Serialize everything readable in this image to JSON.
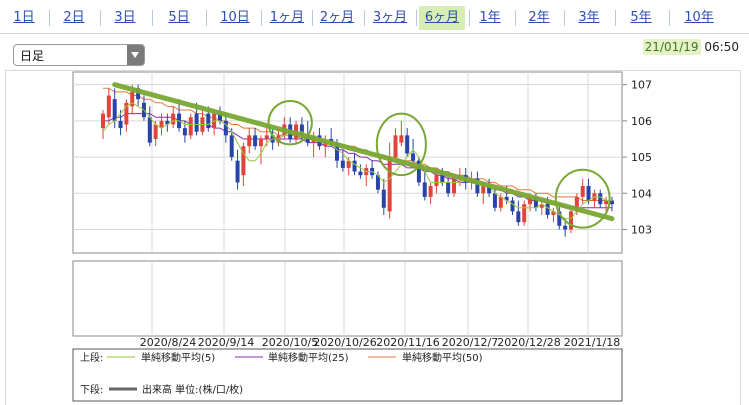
{
  "tabs": [
    {
      "label": "1日"
    },
    {
      "label": "2日"
    },
    {
      "label": "3日"
    },
    {
      "label": "5日"
    },
    {
      "label": "10日"
    },
    {
      "label": "1ヶ月"
    },
    {
      "label": "2ヶ月"
    },
    {
      "label": "3ヶ月"
    },
    {
      "label": "6ヶ月",
      "active": true
    },
    {
      "label": "1年"
    },
    {
      "label": "2年"
    },
    {
      "label": "3年"
    },
    {
      "label": "5年"
    },
    {
      "label": "10年"
    }
  ],
  "period_select": {
    "value": "日足"
  },
  "timestamp": {
    "date": "21/01/19",
    "time": "06:50"
  },
  "colors": {
    "up": "#e0443a",
    "down": "#2844a8",
    "ma5": "#9acb3c",
    "ma25": "#8a2bb8",
    "ma50": "#e07a3a",
    "trend": "#79a832",
    "tab_active": "#d6eeb2",
    "link": "#2a4fb0"
  },
  "legend": {
    "upper_label": "上段:",
    "lower_label": "下段:",
    "ma5": "単純移動平均(5)",
    "ma25": "単純移動平均(25)",
    "ma50": "単純移動平均(50)",
    "volume": "出来高 単位:(株/口/枚)"
  },
  "chart_data": {
    "type": "candlestick",
    "y_ticks": [
      103,
      104,
      105,
      106,
      107
    ],
    "ylim": [
      102.35,
      107.35
    ],
    "x_tick_labels": [
      "2020/8/24",
      "2020/9/14",
      "2020/10/5",
      "2020/10/26",
      "2020/11/16",
      "2020/12/7",
      "2020/12/28",
      "2021/1/18"
    ],
    "candles_ohlc": [
      [
        105.8,
        106.3,
        105.5,
        106.2
      ],
      [
        106.1,
        106.9,
        105.9,
        106.7
      ],
      [
        106.6,
        106.9,
        105.8,
        106.0
      ],
      [
        106.0,
        106.3,
        105.6,
        105.8
      ],
      [
        105.9,
        106.6,
        105.7,
        106.5
      ],
      [
        106.4,
        107.0,
        106.2,
        106.8
      ],
      [
        106.9,
        107.0,
        106.4,
        106.6
      ],
      [
        106.5,
        106.7,
        106.0,
        106.1
      ],
      [
        106.1,
        106.4,
        105.3,
        105.4
      ],
      [
        105.5,
        106.0,
        105.3,
        105.9
      ],
      [
        105.8,
        106.2,
        105.6,
        106.0
      ],
      [
        106.0,
        106.2,
        105.7,
        105.9
      ],
      [
        105.9,
        106.4,
        105.8,
        106.2
      ],
      [
        106.2,
        106.6,
        105.7,
        105.8
      ],
      [
        105.8,
        106.0,
        105.4,
        105.6
      ],
      [
        105.6,
        106.2,
        105.5,
        106.1
      ],
      [
        106.2,
        106.5,
        105.6,
        105.7
      ],
      [
        105.7,
        106.3,
        105.6,
        106.1
      ],
      [
        106.2,
        106.4,
        105.7,
        105.8
      ],
      [
        105.8,
        106.3,
        105.6,
        106.2
      ],
      [
        106.2,
        106.4,
        105.9,
        106.0
      ],
      [
        106.0,
        106.2,
        105.4,
        105.6
      ],
      [
        105.6,
        105.8,
        104.9,
        105.0
      ],
      [
        104.9,
        105.2,
        104.1,
        104.3
      ],
      [
        104.5,
        105.4,
        104.2,
        105.3
      ],
      [
        105.3,
        105.8,
        105.1,
        105.6
      ],
      [
        105.6,
        105.8,
        105.2,
        105.3
      ],
      [
        105.3,
        105.6,
        104.8,
        105.5
      ],
      [
        105.5,
        105.8,
        105.3,
        105.6
      ],
      [
        105.6,
        105.8,
        105.2,
        105.4
      ],
      [
        105.4,
        105.8,
        105.3,
        105.6
      ],
      [
        105.6,
        106.1,
        105.5,
        105.9
      ],
      [
        105.9,
        106.1,
        105.4,
        105.5
      ],
      [
        105.5,
        106.0,
        105.4,
        105.9
      ],
      [
        105.9,
        106.1,
        105.5,
        105.6
      ],
      [
        105.6,
        106.0,
        105.3,
        105.4
      ],
      [
        105.4,
        105.7,
        105.0,
        105.6
      ],
      [
        105.6,
        105.8,
        105.2,
        105.3
      ],
      [
        105.3,
        105.6,
        105.0,
        105.4
      ],
      [
        105.5,
        105.8,
        105.3,
        105.4
      ],
      [
        105.4,
        105.5,
        104.7,
        104.9
      ],
      [
        104.9,
        105.2,
        104.6,
        104.7
      ],
      [
        104.7,
        105.0,
        104.5,
        104.9
      ],
      [
        104.9,
        105.1,
        104.5,
        104.6
      ],
      [
        104.6,
        104.8,
        104.4,
        104.5
      ],
      [
        104.5,
        104.8,
        104.2,
        104.7
      ],
      [
        104.7,
        104.9,
        104.4,
        104.5
      ],
      [
        104.5,
        104.6,
        104.0,
        104.1
      ],
      [
        104.1,
        104.4,
        103.4,
        103.6
      ],
      [
        103.5,
        105.4,
        103.3,
        105.0
      ],
      [
        105.0,
        105.8,
        104.9,
        105.6
      ],
      [
        105.4,
        106.0,
        105.3,
        105.6
      ],
      [
        105.6,
        105.8,
        105.0,
        105.1
      ],
      [
        105.1,
        105.5,
        104.8,
        104.9
      ],
      [
        104.9,
        105.0,
        104.2,
        104.3
      ],
      [
        104.3,
        104.6,
        103.8,
        103.9
      ],
      [
        103.9,
        104.3,
        103.7,
        104.2
      ],
      [
        104.2,
        104.7,
        104.0,
        104.5
      ],
      [
        104.5,
        104.7,
        104.2,
        104.3
      ],
      [
        104.3,
        104.6,
        103.9,
        104.0
      ],
      [
        104.0,
        104.5,
        103.9,
        104.4
      ],
      [
        104.4,
        104.7,
        104.2,
        104.5
      ],
      [
        104.5,
        104.7,
        104.1,
        104.3
      ],
      [
        104.3,
        104.6,
        104.1,
        104.4
      ],
      [
        104.4,
        104.6,
        103.9,
        104.0
      ],
      [
        104.0,
        104.3,
        103.7,
        104.2
      ],
      [
        104.2,
        104.4,
        103.9,
        104.0
      ],
      [
        104.0,
        104.1,
        103.5,
        103.6
      ],
      [
        103.6,
        104.0,
        103.5,
        103.9
      ],
      [
        103.9,
        104.2,
        103.7,
        103.8
      ],
      [
        103.8,
        103.9,
        103.4,
        103.5
      ],
      [
        103.5,
        103.8,
        103.1,
        103.2
      ],
      [
        103.2,
        103.8,
        103.1,
        103.7
      ],
      [
        103.7,
        104.0,
        103.5,
        103.9
      ],
      [
        103.9,
        104.0,
        103.5,
        103.6
      ],
      [
        103.6,
        103.8,
        103.4,
        103.7
      ],
      [
        103.7,
        103.9,
        103.3,
        103.4
      ],
      [
        103.4,
        103.6,
        103.2,
        103.5
      ],
      [
        103.5,
        103.7,
        103.0,
        103.1
      ],
      [
        103.1,
        103.3,
        102.8,
        103.0
      ],
      [
        103.0,
        103.6,
        102.9,
        103.5
      ],
      [
        103.5,
        104.0,
        103.4,
        103.9
      ],
      [
        103.9,
        104.4,
        103.7,
        104.2
      ],
      [
        104.2,
        104.4,
        103.7,
        103.8
      ],
      [
        103.8,
        104.1,
        103.6,
        104.0
      ],
      [
        104.0,
        104.1,
        103.6,
        103.7
      ],
      [
        103.7,
        103.9,
        103.5,
        103.8
      ],
      [
        103.8,
        103.9,
        103.5,
        103.7
      ]
    ],
    "ma5": [
      105.7,
      105.9,
      106.0,
      106.2,
      106.4,
      106.5,
      106.4,
      106.3,
      106.1,
      105.9,
      105.8,
      105.9,
      106.0,
      106.0,
      105.9,
      105.9,
      105.9,
      105.9,
      105.9,
      106.0,
      106.0,
      105.9,
      105.7,
      105.4,
      105.1,
      104.9,
      104.9,
      105.1,
      105.4,
      105.5,
      105.5,
      105.6,
      105.7,
      105.7,
      105.7,
      105.6,
      105.6,
      105.5,
      105.4,
      105.4,
      105.2,
      105.1,
      104.9,
      104.8,
      104.7,
      104.6,
      104.6,
      104.5,
      104.3,
      104.4,
      104.6,
      104.8,
      105.0,
      105.2,
      105.0,
      104.6,
      104.3,
      104.3,
      104.3,
      104.3,
      104.3,
      104.3,
      104.4,
      104.4,
      104.3,
      104.2,
      104.2,
      104.0,
      103.9,
      103.8,
      103.7,
      103.6,
      103.6,
      103.6,
      103.6,
      103.7,
      103.6,
      103.5,
      103.4,
      103.3,
      103.3,
      103.5,
      103.7,
      103.8,
      103.9,
      103.9,
      103.8,
      103.8
    ],
    "ma25": [
      106.0,
      106.0,
      106.1,
      106.1,
      106.2,
      106.2,
      106.2,
      106.2,
      106.2,
      106.1,
      106.1,
      106.1,
      106.1,
      106.0,
      106.0,
      105.9,
      105.9,
      105.9,
      105.9,
      105.8,
      105.8,
      105.7,
      105.7,
      105.6,
      105.5,
      105.5,
      105.5,
      105.5,
      105.5,
      105.5,
      105.5,
      105.5,
      105.5,
      105.5,
      105.5,
      105.4,
      105.4,
      105.4,
      105.3,
      105.3,
      105.2,
      105.2,
      105.1,
      105.1,
      105.0,
      105.0,
      104.9,
      104.9,
      104.8,
      104.8,
      104.8,
      104.8,
      104.7,
      104.7,
      104.7,
      104.6,
      104.6,
      104.5,
      104.5,
      104.4,
      104.4,
      104.3,
      104.3,
      104.3,
      104.3,
      104.2,
      104.2,
      104.1,
      104.1,
      104.0,
      104.0,
      103.9,
      103.9,
      103.8,
      103.8,
      103.8,
      103.7,
      103.7,
      103.7,
      103.6,
      103.6,
      103.6,
      103.6,
      103.6,
      103.6,
      103.6,
      103.6,
      103.6
    ],
    "ma50": [
      106.9,
      106.9,
      106.8,
      106.8,
      106.8,
      106.7,
      106.7,
      106.6,
      106.6,
      106.5,
      106.5,
      106.4,
      106.4,
      106.3,
      106.3,
      106.3,
      106.2,
      106.2,
      106.1,
      106.1,
      106.0,
      106.0,
      105.9,
      105.9,
      105.8,
      105.8,
      105.8,
      105.7,
      105.7,
      105.7,
      105.6,
      105.6,
      105.6,
      105.6,
      105.5,
      105.5,
      105.5,
      105.5,
      105.4,
      105.4,
      105.4,
      105.3,
      105.3,
      105.3,
      105.2,
      105.2,
      105.1,
      105.1,
      105.0,
      105.0,
      105.0,
      104.9,
      104.9,
      104.9,
      104.8,
      104.8,
      104.7,
      104.7,
      104.6,
      104.6,
      104.5,
      104.5,
      104.5,
      104.4,
      104.4,
      104.4,
      104.3,
      104.3,
      104.2,
      104.2,
      104.2,
      104.1,
      104.1,
      104.1,
      104.0,
      104.0,
      104.0,
      103.9,
      103.9,
      103.9,
      103.9,
      103.9,
      103.8,
      103.8,
      103.8,
      103.8,
      103.8,
      103.8
    ],
    "trendline": {
      "from": [
        2,
        107.0
      ],
      "to": [
        87,
        103.3
      ]
    },
    "annotation_circles": [
      {
        "center": [
          32,
          105.95
        ],
        "r_index": 3.7,
        "r_value": 0.6
      },
      {
        "center": [
          51,
          105.35
        ],
        "r_index": 4.2,
        "r_value": 0.85
      },
      {
        "center": [
          82,
          103.85
        ],
        "r_index": 4.6,
        "r_value": 0.8
      }
    ],
    "grid": true,
    "legend_position": "bottom"
  }
}
